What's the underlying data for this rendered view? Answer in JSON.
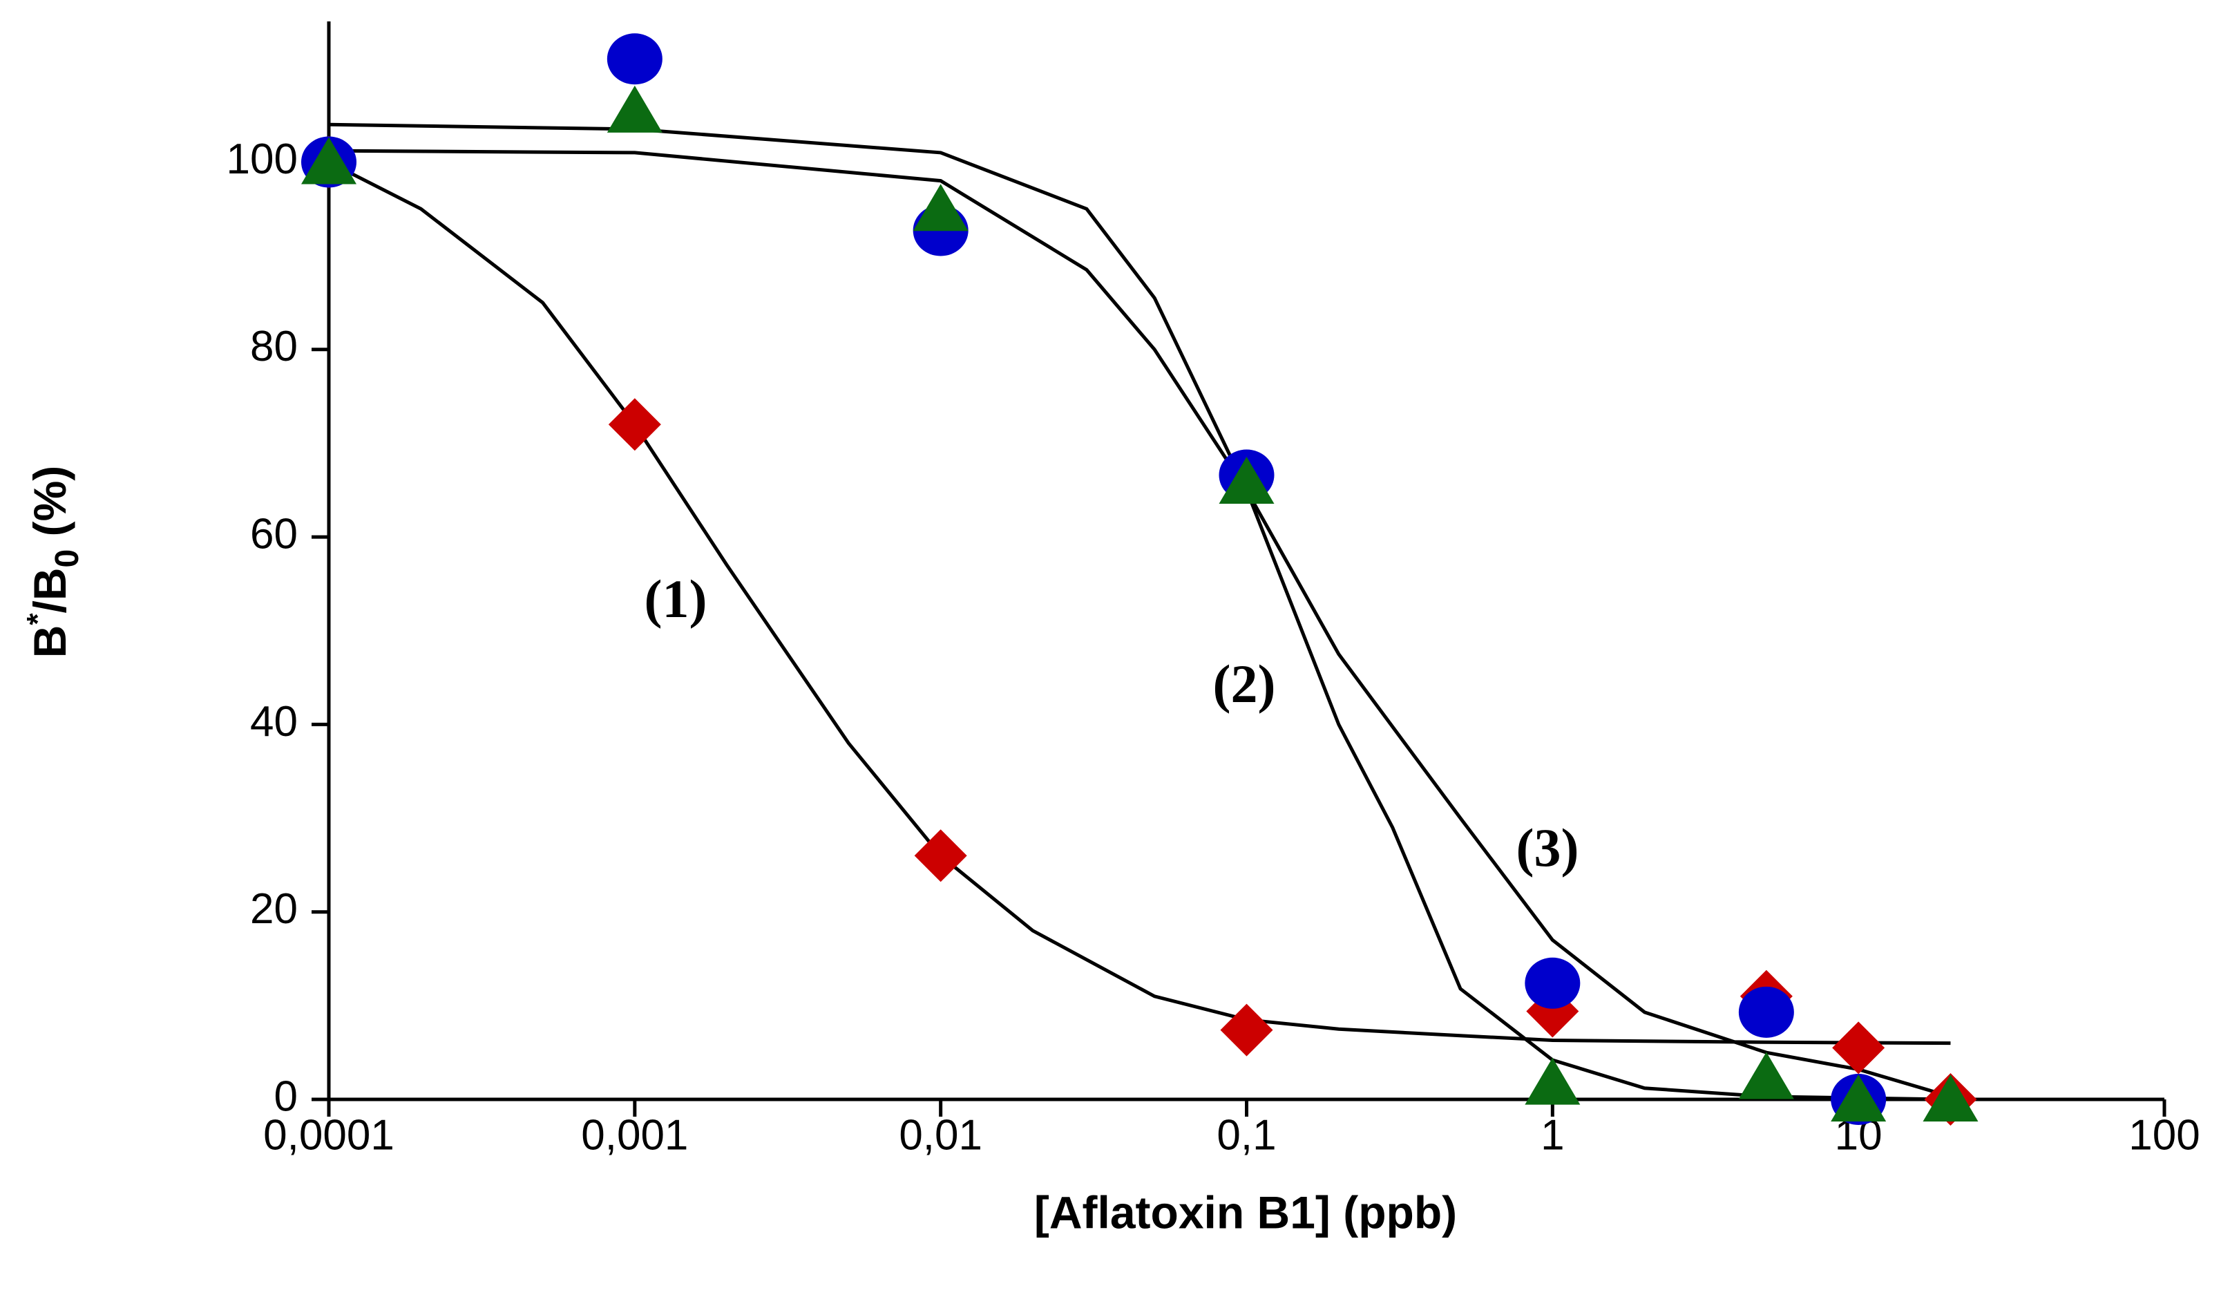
{
  "chart_data": {
    "type": "scatter",
    "x_scale": "log",
    "x_label": "[Aflatoxin B1] (ppb)",
    "y_label_parts": [
      "B",
      "*",
      "/B",
      "0",
      " (%)"
    ],
    "xlim": [
      0.0001,
      100
    ],
    "xticks": [
      {
        "value": 0.0001,
        "label": "0,0001"
      },
      {
        "value": 0.001,
        "label": "0,001"
      },
      {
        "value": 0.01,
        "label": "0,01"
      },
      {
        "value": 0.1,
        "label": "0,1"
      },
      1,
      10,
      100
    ],
    "ylim": [
      0,
      115
    ],
    "yticks": [
      0,
      20,
      40,
      60,
      80,
      100
    ],
    "annotations": [
      "(1)",
      "(2)",
      "(3)"
    ],
    "curves": [
      {
        "color": "#000000",
        "x": [
          0.0001,
          0.0002,
          0.0005,
          0.001,
          0.002,
          0.005,
          0.01,
          0.02,
          0.05,
          0.1,
          0.2,
          0.5,
          1,
          5,
          20
        ],
        "values": [
          100,
          95,
          85,
          72,
          57,
          38,
          26,
          18,
          11,
          8.5,
          7.5,
          6.8,
          6.3,
          6.1,
          6.0
        ]
      },
      {
        "color": "#000000",
        "x": [
          0.0001,
          0.001,
          0.01,
          0.03,
          0.05,
          0.1,
          0.2,
          0.3,
          0.5,
          1,
          2,
          5,
          20
        ],
        "values": [
          104,
          103.5,
          101,
          95,
          85.5,
          65,
          40,
          29,
          11.8,
          4.2,
          1.2,
          0.3,
          0
        ]
      },
      {
        "color": "#000000",
        "x": [
          0.0001,
          0.001,
          0.01,
          0.03,
          0.05,
          0.1,
          0.2,
          0.5,
          1,
          2,
          5,
          10,
          20
        ],
        "values": [
          101.2,
          101,
          98,
          88.5,
          80,
          65,
          47.5,
          30,
          17,
          9.3,
          5,
          3.2,
          0.3
        ]
      }
    ],
    "series": [
      {
        "color": "#cc0000",
        "marker": "diamond",
        "x": [
          0.0001,
          0.001,
          0.01,
          0.1,
          1,
          5,
          10,
          20
        ],
        "values": [
          100,
          72,
          26,
          7.4,
          9.4,
          11,
          5.5,
          0
        ]
      },
      {
        "color": "#0000cc",
        "marker": "circle",
        "x": [
          0.0001,
          0.001,
          0.01,
          0.1,
          1,
          5,
          10
        ],
        "values": [
          100,
          111,
          92.7,
          66.6,
          12.4,
          9.3,
          0
        ]
      },
      {
        "color": "#0b6b12",
        "marker": "triangle",
        "x": [
          0.0001,
          0.001,
          0.01,
          0.1,
          1,
          5,
          10,
          20
        ],
        "values": [
          100,
          105.5,
          95,
          65.9,
          1.8,
          2.4,
          0,
          0
        ]
      }
    ]
  }
}
